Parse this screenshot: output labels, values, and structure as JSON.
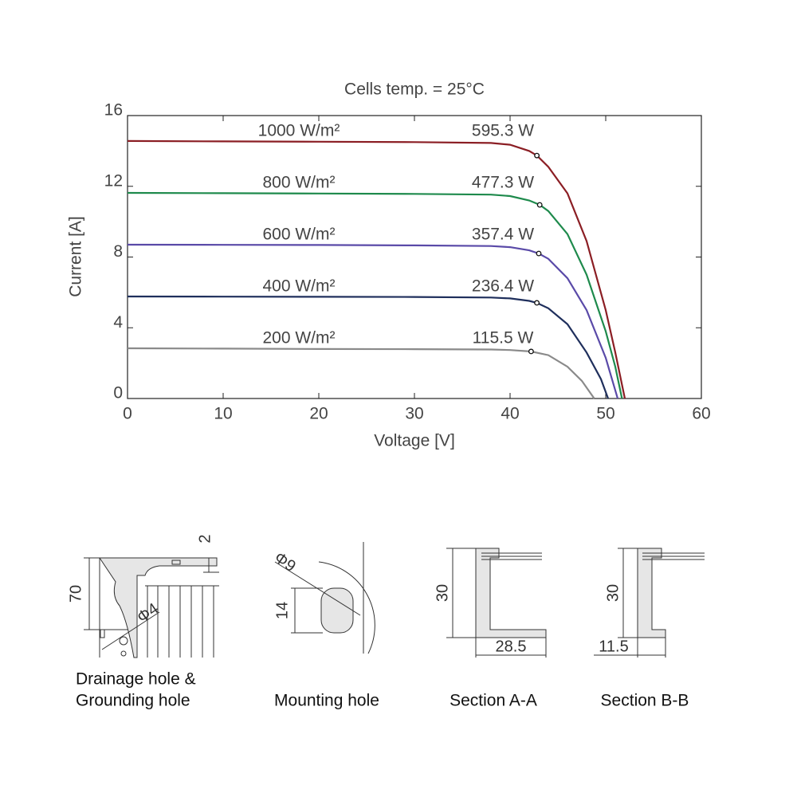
{
  "chart_data": {
    "type": "line",
    "title": "Cells temp. = 25°C",
    "xlabel": "Voltage [V]",
    "ylabel": "Current [A]",
    "xlim": [
      0,
      60
    ],
    "xticks": [
      0,
      10,
      20,
      30,
      40,
      50,
      60
    ],
    "ylim": [
      0,
      16
    ],
    "yticks": [
      0,
      4,
      8,
      12,
      16
    ],
    "grid": false,
    "series": [
      {
        "name": "1000 W/m²",
        "color": "#8b1e24",
        "x": [
          0,
          10,
          20,
          30,
          38,
          40,
          42,
          42.8,
          44,
          46,
          48,
          50,
          51,
          52
        ],
        "values": [
          14.56,
          14.54,
          14.52,
          14.5,
          14.45,
          14.35,
          14.0,
          13.74,
          13.1,
          11.6,
          8.9,
          5.0,
          2.6,
          0
        ],
        "mpp": {
          "x": 42.8,
          "y": 13.74,
          "label": "595.3 W"
        }
      },
      {
        "name": "800 W/m²",
        "color": "#1e8a4c",
        "x": [
          0,
          10,
          20,
          30,
          38,
          40,
          42,
          43.1,
          44,
          46,
          48,
          50,
          51,
          51.7
        ],
        "values": [
          11.63,
          11.61,
          11.59,
          11.57,
          11.53,
          11.45,
          11.2,
          10.95,
          10.6,
          9.3,
          7.0,
          3.8,
          1.8,
          0
        ],
        "mpp": {
          "x": 43.1,
          "y": 10.95,
          "label": "477.3 W"
        }
      },
      {
        "name": "600 W/m²",
        "color": "#5a4aa8",
        "x": [
          0,
          10,
          20,
          30,
          38,
          40,
          42,
          43.0,
          44,
          46,
          48,
          50,
          51.25
        ],
        "values": [
          8.7,
          8.69,
          8.68,
          8.66,
          8.62,
          8.56,
          8.38,
          8.2,
          7.9,
          6.8,
          5.0,
          2.3,
          0
        ],
        "mpp": {
          "x": 43.0,
          "y": 8.2,
          "label": "357.4 W"
        }
      },
      {
        "name": "400 W/m²",
        "color": "#1f2f5c",
        "x": [
          0,
          10,
          20,
          30,
          38,
          40,
          42,
          42.8,
          44,
          46,
          48,
          49.5,
          50.25
        ],
        "values": [
          5.77,
          5.76,
          5.75,
          5.74,
          5.71,
          5.66,
          5.52,
          5.41,
          5.1,
          4.2,
          2.6,
          1.1,
          0
        ],
        "mpp": {
          "x": 42.8,
          "y": 5.41,
          "label": "236.4 W"
        }
      },
      {
        "name": "200 W/m²",
        "color": "#8a8a8a",
        "x": [
          0,
          10,
          20,
          30,
          38,
          40,
          42.2,
          44,
          46,
          47.5,
          48.8
        ],
        "values": [
          2.84,
          2.82,
          2.8,
          2.79,
          2.77,
          2.74,
          2.66,
          2.45,
          1.8,
          1.0,
          0
        ],
        "mpp": {
          "x": 42.2,
          "y": 2.66,
          "label": "115.5 W"
        }
      }
    ]
  },
  "drawings": [
    {
      "caption": [
        "Drainage hole &",
        "Grounding hole"
      ],
      "dims": [
        "2",
        "70",
        "Φ4"
      ]
    },
    {
      "caption": [
        "Mounting hole"
      ],
      "dims": [
        "Φ9",
        "14"
      ]
    },
    {
      "caption": [
        "Section A-A"
      ],
      "dims": [
        "30",
        "28.5"
      ]
    },
    {
      "caption": [
        "Section B-B"
      ],
      "dims": [
        "30",
        "11.5"
      ]
    }
  ]
}
